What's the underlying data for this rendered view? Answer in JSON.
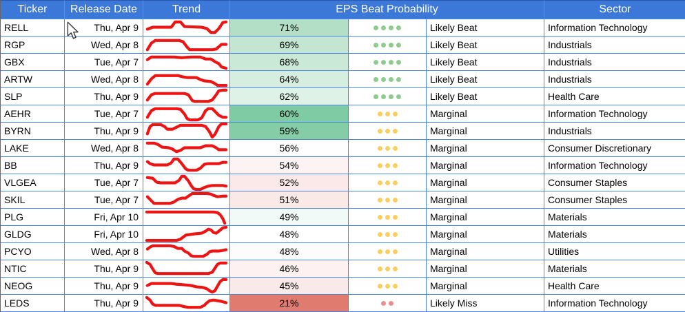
{
  "header": {
    "bg": "#3c78d8",
    "text_color": "#ffffff",
    "columns": {
      "ticker": "Ticker",
      "release_date": "Release Date",
      "trend": "Trend",
      "eps_beat_probability": "EPS Beat Probability",
      "sector": "Sector"
    }
  },
  "colors": {
    "grid_border": "#4a86e8",
    "sparkline": "#ed1414",
    "dot_beat": "#8fcb8c",
    "dot_marginal": "#f8cf60",
    "dot_miss": "#ea8e8e"
  },
  "rows": [
    {
      "ticker": "RELL",
      "date": "Thu, Apr 9",
      "prob": "71%",
      "prob_bg": "#b3dfc7",
      "dots": 4,
      "dots_color": "#8fcb8c",
      "label": "Likely Beat",
      "sector": "Information Technology",
      "spark": [
        4,
        15,
        12,
        12,
        40,
        12,
        46,
        4,
        54,
        4,
        60,
        11,
        86,
        12,
        94,
        14,
        100,
        20,
        106,
        20,
        112,
        14,
        118,
        5,
        123,
        4
      ]
    },
    {
      "ticker": "RGP",
      "date": "Wed, Apr 8",
      "prob": "69%",
      "prob_bg": "#c3e5d1",
      "dots": 4,
      "dots_color": "#8fcb8c",
      "label": "Likely Beat",
      "sector": "Industrials",
      "spark": [
        4,
        20,
        10,
        10,
        16,
        6,
        52,
        6,
        58,
        8,
        64,
        16,
        68,
        20,
        102,
        20,
        108,
        19,
        116,
        12,
        123,
        12
      ]
    },
    {
      "ticker": "GBX",
      "date": "Tue, Apr 7",
      "prob": "68%",
      "prob_bg": "#cbe9d7",
      "dots": 4,
      "dots_color": "#8fcb8c",
      "label": "Likely Beat",
      "sector": "Industrials",
      "spark": [
        4,
        9,
        10,
        5,
        44,
        5,
        56,
        6,
        70,
        5,
        84,
        5,
        92,
        8,
        100,
        8,
        106,
        12,
        112,
        15,
        116,
        20,
        123,
        22
      ]
    },
    {
      "ticker": "ARTW",
      "date": "Wed, Apr 8",
      "prob": "64%",
      "prob_bg": "#d6eedf",
      "dots": 4,
      "dots_color": "#8fcb8c",
      "label": "Likely Beat",
      "sector": "Industrials",
      "spark": [
        4,
        20,
        10,
        12,
        16,
        7,
        50,
        7,
        58,
        9,
        64,
        10,
        78,
        10,
        84,
        13,
        90,
        15,
        100,
        16,
        106,
        19,
        110,
        22,
        123,
        22
      ]
    },
    {
      "ticker": "SLP",
      "date": "Thu, Apr 9",
      "prob": "62%",
      "prob_bg": "#dff2e7",
      "dots": 4,
      "dots_color": "#8fcb8c",
      "label": "Likely Beat",
      "sector": "Health Care",
      "spark": [
        4,
        18,
        10,
        10,
        16,
        8,
        60,
        8,
        66,
        10,
        72,
        19,
        76,
        20,
        96,
        20,
        102,
        18,
        108,
        10,
        112,
        4,
        118,
        3,
        123,
        3
      ]
    },
    {
      "ticker": "AEHR",
      "date": "Tue, Apr 7",
      "prob": "60%",
      "prob_bg": "#7fcba3",
      "dots": 3,
      "dots_color": "#f8cf60",
      "label": "Marginal",
      "sector": "Information Technology",
      "spark": [
        4,
        18,
        10,
        8,
        16,
        5,
        48,
        5,
        54,
        6,
        60,
        13,
        64,
        20,
        68,
        22,
        80,
        22,
        86,
        19,
        92,
        8,
        96,
        5,
        102,
        5,
        106,
        9,
        112,
        15,
        118,
        18,
        123,
        18
      ]
    },
    {
      "ticker": "BYRN",
      "date": "Thu, Apr 9",
      "prob": "59%",
      "prob_bg": "#85cda6",
      "dots": 3,
      "dots_color": "#f8cf60",
      "label": "Marginal",
      "sector": "Industrials",
      "spark": [
        4,
        17,
        8,
        6,
        12,
        3,
        24,
        3,
        30,
        6,
        34,
        10,
        42,
        10,
        48,
        7,
        54,
        4,
        86,
        4,
        92,
        6,
        98,
        14,
        102,
        22,
        106,
        18,
        112,
        6,
        116,
        2,
        123,
        2
      ]
    },
    {
      "ticker": "LAKE",
      "date": "Wed, Apr 8",
      "prob": "56%",
      "prob_bg": "#fdfefd",
      "dots": 3,
      "dots_color": "#f8cf60",
      "label": "Marginal",
      "sector": "Consumer Discretionary",
      "spark": [
        4,
        5,
        14,
        5,
        20,
        7,
        26,
        11,
        36,
        12,
        42,
        14,
        48,
        18,
        54,
        16,
        60,
        12,
        84,
        12,
        92,
        9,
        102,
        9,
        108,
        12,
        112,
        15,
        123,
        15
      ]
    },
    {
      "ticker": "BB",
      "date": "Thu, Apr 9",
      "prob": "54%",
      "prob_bg": "#fdf3f3",
      "dots": 3,
      "dots_color": "#f8cf60",
      "label": "Marginal",
      "sector": "Information Technology",
      "spark": [
        4,
        7,
        8,
        10,
        14,
        12,
        34,
        12,
        40,
        9,
        44,
        3,
        50,
        3,
        56,
        10,
        62,
        18,
        66,
        20,
        78,
        20,
        84,
        17,
        90,
        11,
        96,
        10,
        112,
        10,
        118,
        8,
        123,
        8
      ]
    },
    {
      "ticker": "VLGEA",
      "date": "Tue, Apr 7",
      "prob": "52%",
      "prob_bg": "#fae9e8",
      "dots": 3,
      "dots_color": "#f8cf60",
      "label": "Marginal",
      "sector": "Consumer Staples",
      "spark": [
        4,
        5,
        12,
        6,
        18,
        12,
        24,
        13,
        46,
        13,
        52,
        9,
        56,
        3,
        60,
        3,
        66,
        10,
        70,
        17,
        74,
        22,
        78,
        23,
        84,
        23,
        90,
        20,
        96,
        18,
        102,
        17,
        118,
        17,
        123,
        18
      ]
    },
    {
      "ticker": "SKIL",
      "date": "Tue, Apr 7",
      "prob": "51%",
      "prob_bg": "#f9e9e7",
      "dots": 3,
      "dots_color": "#f8cf60",
      "label": "Marginal",
      "sector": "Consumer Staples",
      "spark": [
        4,
        8,
        10,
        14,
        14,
        18,
        38,
        18,
        44,
        16,
        50,
        12,
        56,
        10,
        62,
        10,
        66,
        7,
        72,
        3,
        94,
        3,
        100,
        4,
        104,
        6,
        110,
        8,
        118,
        7,
        123,
        7
      ]
    },
    {
      "ticker": "PLG",
      "date": "Fri, Apr 10",
      "prob": "49%",
      "prob_bg": "#f2faf7",
      "dots": 3,
      "dots_color": "#f8cf60",
      "label": "Marginal",
      "sector": "Materials",
      "spark": [
        3,
        5,
        104,
        5,
        110,
        6,
        114,
        9,
        118,
        15,
        121,
        22
      ]
    },
    {
      "ticker": "GLDG",
      "date": "Fri, Apr 10",
      "prob": "48%",
      "prob_bg": "#ffffff",
      "dots": 3,
      "dots_color": "#f8cf60",
      "label": "Marginal",
      "sector": "Materials",
      "spark": [
        3,
        22,
        48,
        22,
        54,
        20,
        58,
        17,
        62,
        14,
        68,
        13,
        76,
        12,
        86,
        11,
        92,
        8,
        96,
        5,
        100,
        6,
        104,
        10,
        108,
        11,
        112,
        8,
        118,
        3,
        123,
        2
      ]
    },
    {
      "ticker": "PCYO",
      "date": "Wed, Apr 8",
      "prob": "48%",
      "prob_bg": "#fdfcfc",
      "dots": 3,
      "dots_color": "#f8cf60",
      "label": "Marginal",
      "sector": "Utilities",
      "spark": [
        4,
        9,
        8,
        6,
        12,
        4,
        38,
        4,
        44,
        5,
        50,
        8,
        56,
        8,
        60,
        12,
        66,
        15,
        70,
        19,
        74,
        20,
        88,
        20,
        94,
        17,
        98,
        13,
        102,
        12,
        112,
        12,
        118,
        11,
        123,
        10
      ]
    },
    {
      "ticker": "NTIC",
      "date": "Thu, Apr 9",
      "prob": "46%",
      "prob_bg": "#fdf1f1",
      "dots": 3,
      "dots_color": "#f8cf60",
      "label": "Marginal",
      "sector": "Materials",
      "spark": [
        3,
        3,
        8,
        6,
        12,
        13,
        16,
        19,
        20,
        20,
        96,
        20,
        102,
        18,
        106,
        12,
        110,
        6,
        114,
        4,
        123,
        4
      ]
    },
    {
      "ticker": "NEOG",
      "date": "Thu, Apr 9",
      "prob": "45%",
      "prob_bg": "#fae9e9",
      "dots": 3,
      "dots_color": "#f8cf60",
      "label": "Marginal",
      "sector": "Health Care",
      "spark": [
        4,
        12,
        10,
        9,
        40,
        9,
        48,
        10,
        60,
        11,
        70,
        12,
        78,
        14,
        88,
        15,
        94,
        17,
        98,
        20,
        102,
        22,
        106,
        20,
        110,
        13,
        114,
        6,
        118,
        3,
        123,
        3
      ]
    },
    {
      "ticker": "LEDS",
      "date": "Thu, Apr 9",
      "prob": "21%",
      "prob_bg": "#e07b70",
      "dots": 2,
      "dots_color": "#ea8e8e",
      "label": "Likely Miss",
      "sector": "Information Technology",
      "spark": [
        3,
        4,
        8,
        8,
        12,
        14,
        16,
        16,
        52,
        16,
        60,
        18,
        66,
        19,
        84,
        19,
        90,
        16,
        94,
        12,
        98,
        9,
        104,
        8,
        110,
        9,
        116,
        10,
        123,
        12
      ]
    }
  ]
}
